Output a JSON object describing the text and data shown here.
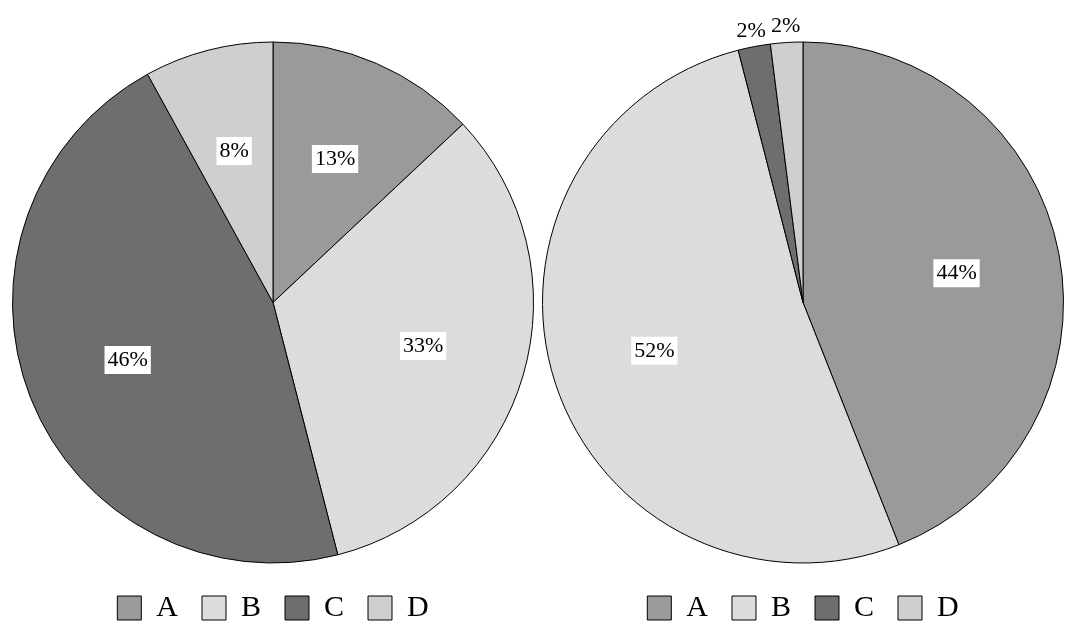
{
  "chart_data": [
    {
      "type": "pie",
      "categories": [
        "A",
        "B",
        "C",
        "D"
      ],
      "values": [
        13,
        33,
        46,
        8
      ],
      "colors": [
        "#9a9a9a",
        "#dcdcdc",
        "#6e6e6e",
        "#cfcfcf"
      ],
      "value_labels": [
        "13%",
        "33%",
        "46%",
        "8%"
      ],
      "legend": "bottom"
    },
    {
      "type": "pie",
      "categories": [
        "A",
        "B",
        "C",
        "D"
      ],
      "values": [
        44,
        52,
        2,
        2
      ],
      "colors": [
        "#9a9a9a",
        "#dcdcdc",
        "#6e6e6e",
        "#cfcfcf"
      ],
      "value_labels": [
        "44%",
        "52%",
        "2%",
        "2%"
      ],
      "legend": "bottom"
    }
  ]
}
